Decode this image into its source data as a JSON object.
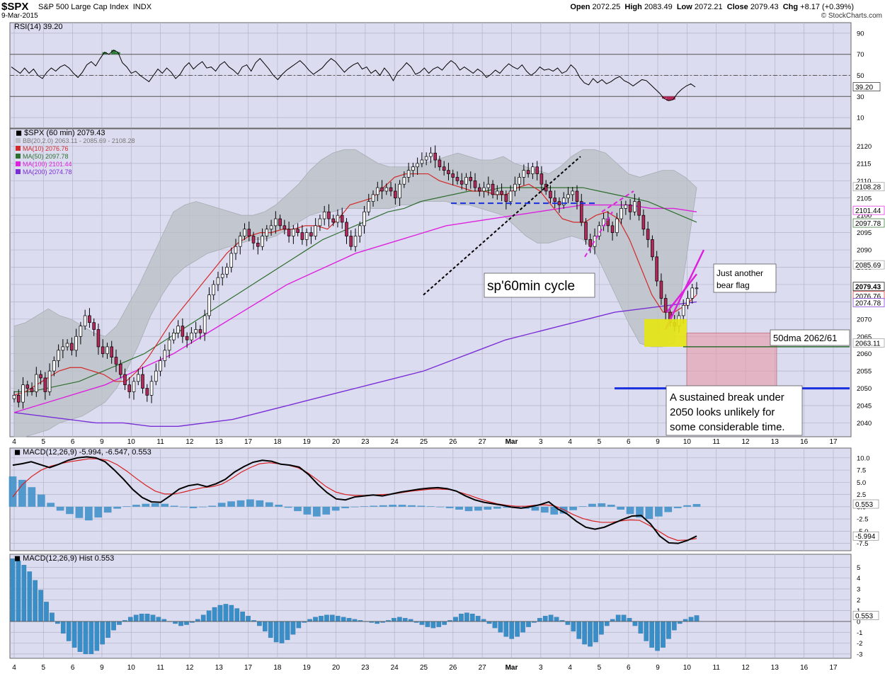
{
  "header": {
    "symbol": "$SPX",
    "company": "S&P 500 Large Cap Index",
    "exchange": "INDX",
    "date": "9-Mar-2015",
    "open_label": "Open",
    "open": "2072.25",
    "high_label": "High",
    "high": "2083.49",
    "low_label": "Low",
    "low": "2072.21",
    "close_label": "Close",
    "close": "2079.43",
    "chg_label": "Chg",
    "chg": "+8.17 (+0.39%)",
    "watermark": "© StockCharts.com"
  },
  "colors": {
    "background": "#ffffff",
    "panel": "#dcdcf0",
    "grid": "#b4b4c8",
    "up_candle": "#ffffff",
    "down_candle": "#b4285a",
    "bollinger": "#b9bfc4",
    "ma10": "#d22a2a",
    "ma50": "#2e6e2e",
    "ma100": "#dd22dd",
    "ma200": "#7a2ed6",
    "histogram": "#3a8ec8",
    "signal": "#d82020"
  },
  "chart_data": [
    {
      "type": "line",
      "panel": "rsi",
      "title": "RSI(14) 39.20",
      "ylim": [
        0,
        100
      ],
      "yticks": [
        10,
        30,
        50,
        70,
        90
      ],
      "reference_lines": [
        30,
        50,
        70
      ],
      "last_label": "39.20",
      "series": [
        {
          "name": "RSI(14)",
          "values": [
            58,
            55,
            52,
            57,
            52,
            56,
            50,
            47,
            53,
            57,
            54,
            58,
            60,
            57,
            52,
            48,
            53,
            60,
            63,
            59,
            66,
            72,
            70,
            74,
            72,
            62,
            58,
            52,
            54,
            50,
            47,
            44,
            50,
            56,
            52,
            57,
            53,
            47,
            51,
            58,
            62,
            56,
            60,
            63,
            57,
            58,
            54,
            60,
            63,
            58,
            55,
            51,
            58,
            60,
            54,
            62,
            66,
            61,
            56,
            50,
            46,
            51,
            55,
            58,
            61,
            64,
            60,
            55,
            51,
            54,
            57,
            62,
            66,
            63,
            58,
            53,
            57,
            60,
            62,
            56,
            58,
            52,
            55,
            50,
            57,
            52,
            45,
            53,
            57,
            62,
            58,
            51,
            53,
            57,
            52,
            56,
            58,
            55,
            60,
            64,
            61,
            55,
            58,
            55,
            52,
            56,
            53,
            48,
            51,
            55,
            52,
            57,
            61,
            58,
            56,
            60,
            54,
            50,
            53,
            58,
            55,
            56,
            54,
            57,
            52,
            54,
            60,
            56,
            48,
            43,
            41,
            47,
            43,
            46,
            42,
            44,
            47,
            49,
            45,
            43,
            40,
            43,
            46,
            45,
            41,
            37,
            33,
            28,
            26,
            27,
            33,
            37,
            40,
            42,
            39
          ]
        }
      ]
    },
    {
      "type": "candlestick",
      "panel": "price",
      "title": "$SPX (60 min) 2079.43",
      "legend": [
        "BB(20,2.0) 2063.11 - 2085.69 - 2108.28",
        "MA(10) 2076.76",
        "MA(50) 2097.78",
        "MA(100) 2101.44",
        "MA(200) 2074.78"
      ],
      "ylim": [
        2036,
        2125
      ],
      "yticks": [
        2040,
        2045,
        2050,
        2055,
        2060,
        2065,
        2070,
        2075,
        2080,
        2085,
        2090,
        2095,
        2100,
        2105,
        2110,
        2115,
        2120
      ],
      "right_labels": [
        "2108.28",
        "2101.44",
        "2097.78",
        "2085.69",
        "2079.43",
        "2076.76",
        "2074.78",
        "2063.11"
      ],
      "x_labels": [
        "4",
        "5",
        "6",
        "9",
        "10",
        "11",
        "12",
        "13",
        "17",
        "18",
        "19",
        "20",
        "23",
        "24",
        "25",
        "26",
        "27",
        "Mar",
        "3",
        "4",
        "5",
        "6",
        "9",
        "10",
        "11",
        "12",
        "13",
        "16",
        "17"
      ],
      "close_series": [
        2048,
        2046,
        2051,
        2050,
        2049,
        2054,
        2053,
        2049,
        2055,
        2058,
        2061,
        2062,
        2063,
        2061,
        2065,
        2068,
        2071,
        2069,
        2067,
        2062,
        2060,
        2062,
        2059,
        2057,
        2054,
        2051,
        2049,
        2052,
        2054,
        2050,
        2048,
        2052,
        2055,
        2058,
        2061,
        2064,
        2066,
        2068,
        2065,
        2064,
        2066,
        2067,
        2066,
        2071,
        2077,
        2080,
        2082,
        2083,
        2085,
        2089,
        2091,
        2094,
        2096,
        2094,
        2092,
        2091,
        2094,
        2096,
        2097,
        2099,
        2097,
        2096,
        2094,
        2096,
        2095,
        2093,
        2095,
        2094,
        2097,
        2099,
        2101,
        2099,
        2098,
        2100,
        2098,
        2094,
        2091,
        2094,
        2097,
        2101,
        2104,
        2106,
        2108,
        2107,
        2108,
        2107,
        2105,
        2109,
        2111,
        2113,
        2114,
        2115,
        2116,
        2117,
        2118,
        2116,
        2114,
        2113,
        2112,
        2111,
        2110,
        2109,
        2111,
        2110,
        2108,
        2107,
        2108,
        2109,
        2106,
        2107,
        2106,
        2104,
        2107,
        2109,
        2111,
        2113,
        2112,
        2114,
        2112,
        2109,
        2107,
        2105,
        2104,
        2103,
        2105,
        2106,
        2107,
        2104,
        2098,
        2093,
        2091,
        2094,
        2097,
        2099,
        2097,
        2095,
        2099,
        2102,
        2103,
        2101,
        2104,
        2100,
        2096,
        2093,
        2088,
        2081,
        2076,
        2072,
        2069,
        2068,
        2071,
        2074,
        2076,
        2079,
        2079
      ],
      "series": [
        {
          "name": "MA(10)",
          "values": [
            2048,
            2049,
            2051,
            2053,
            2055,
            2056,
            2056,
            2055,
            2054,
            2052,
            2052,
            2055,
            2059,
            2064,
            2069,
            2073,
            2077,
            2081,
            2085,
            2089,
            2092,
            2094,
            2095,
            2095,
            2096,
            2096,
            2097,
            2097,
            2096,
            2099,
            2103,
            2104,
            2105,
            2108,
            2111,
            2112,
            2112,
            2112,
            2110,
            2109,
            2108,
            2107,
            2107,
            2106,
            2106,
            2108,
            2109,
            2107,
            2103,
            2099,
            2098,
            2098,
            2100,
            2101,
            2099,
            2093,
            2085,
            2077,
            2072,
            2072,
            2074,
            2077
          ]
        },
        {
          "name": "MA(50)",
          "values": [
            2049,
            2049,
            2050,
            2051,
            2052,
            2054,
            2056,
            2058,
            2060,
            2063,
            2066,
            2069,
            2072,
            2075,
            2078,
            2081,
            2084,
            2087,
            2090,
            2093,
            2095,
            2097,
            2099,
            2101,
            2102,
            2104,
            2105,
            2106,
            2107,
            2107,
            2108,
            2108,
            2108,
            2108,
            2108,
            2108,
            2107,
            2106,
            2105,
            2104,
            2102,
            2100,
            2098
          ]
        },
        {
          "name": "MA(100)",
          "values": [
            2043,
            2045,
            2047,
            2049,
            2051,
            2054,
            2057,
            2060,
            2064,
            2068,
            2072,
            2076,
            2080,
            2083,
            2086,
            2089,
            2091,
            2093,
            2095,
            2097,
            2098,
            2099,
            2100,
            2101,
            2102,
            2103,
            2103,
            2103,
            2102,
            2102,
            2101
          ]
        },
        {
          "name": "MA(200)",
          "values": [
            2043,
            2042,
            2041,
            2040,
            2040,
            2039,
            2039,
            2040,
            2041,
            2043,
            2045,
            2047,
            2049,
            2051,
            2053,
            2055,
            2058,
            2061,
            2064,
            2066,
            2068,
            2070,
            2072,
            2073,
            2074,
            2075
          ]
        },
        {
          "name": "BB upper",
          "values": [
            2068,
            2069,
            2071,
            2073,
            2071,
            2070,
            2068,
            2066,
            2065,
            2068,
            2074,
            2080,
            2087,
            2094,
            2101,
            2103,
            2104,
            2103,
            2102,
            2101,
            2100,
            2100,
            2101,
            2103,
            2106,
            2109,
            2113,
            2116,
            2118,
            2119,
            2119,
            2117,
            2115,
            2114,
            2114,
            2114,
            2115,
            2116,
            2117,
            2118,
            2117,
            2116,
            2116,
            2117,
            2115,
            2114,
            2113,
            2112,
            2114,
            2117,
            2119,
            2119,
            2118,
            2115,
            2112,
            2111,
            2112,
            2113,
            2113,
            2111,
            2108
          ]
        },
        {
          "name": "BB lower",
          "values": [
            2036,
            2036,
            2037,
            2038,
            2040,
            2041,
            2042,
            2044,
            2046,
            2050,
            2056,
            2063,
            2071,
            2077,
            2082,
            2085,
            2087,
            2089,
            2090,
            2091,
            2092,
            2093,
            2093,
            2094,
            2096,
            2098,
            2100,
            2101,
            2101,
            2102,
            2102,
            2102,
            2102,
            2102,
            2103,
            2103,
            2104,
            2104,
            2104,
            2103,
            2103,
            2102,
            2101,
            2100,
            2097,
            2094,
            2092,
            2092,
            2093,
            2094,
            2093,
            2090,
            2083,
            2076,
            2069,
            2063,
            2062,
            2062,
            2063
          ]
        }
      ],
      "annotations": {
        "cycle_label": "sp'60min cycle",
        "flag_label_line1": "Just another",
        "flag_label_line2": "bear flag",
        "ma50_label": "50dma 2062/61",
        "support_level": 2050,
        "note_line1": "A sustained break under",
        "note_line2": "2050 looks unlikely for",
        "note_line3": "some considerable time."
      }
    },
    {
      "type": "line",
      "panel": "macd",
      "title": "MACD(12,26,9) -5.994, -6.547, 0.553",
      "ylim": [
        -9,
        12
      ],
      "yticks": [
        -7.5,
        -5.0,
        -2.5,
        0.0,
        2.5,
        5.0,
        7.5,
        10.0
      ],
      "right_labels": [
        "0.553",
        "-5.994"
      ],
      "series": [
        {
          "name": "MACD",
          "values": [
            8.5,
            8.8,
            9.2,
            8.6,
            8.0,
            8.7,
            9.5,
            10.0,
            10.2,
            10.0,
            9.2,
            7.5,
            5.6,
            3.5,
            1.9,
            1.0,
            0.9,
            2.2,
            3.6,
            4.3,
            4.6,
            4.1,
            4.7,
            5.6,
            7.1,
            8.2,
            9.1,
            9.5,
            9.3,
            8.7,
            8.5,
            8.1,
            6.6,
            4.6,
            2.9,
            1.6,
            1.4,
            2.0,
            2.2,
            2.4,
            2.2,
            2.6,
            3.0,
            3.3,
            3.6,
            3.8,
            3.9,
            3.7,
            3.2,
            2.2,
            1.4,
            0.9,
            0.6,
            0.3,
            -0.1,
            -0.3,
            0.0,
            0.4,
            1.0,
            -0.5,
            -1.5,
            -3.0,
            -4.2,
            -4.6,
            -4.2,
            -3.4,
            -2.6,
            -1.9,
            -1.8,
            -3.5,
            -6.0,
            -7.4,
            -7.5,
            -6.9,
            -6.0
          ]
        },
        {
          "name": "Signal",
          "values": [
            2.0,
            4.5,
            6.2,
            7.5,
            8.3,
            8.8,
            9.2,
            9.5,
            9.8,
            9.8,
            9.5,
            8.6,
            7.3,
            5.8,
            4.4,
            3.2,
            2.6,
            2.6,
            3.0,
            3.5,
            3.9,
            4.1,
            4.6,
            5.7,
            7.0,
            8.0,
            8.8,
            9.0,
            8.8,
            8.5,
            8.0,
            7.0,
            5.6,
            4.1,
            3.0,
            2.5,
            2.3,
            2.3,
            2.4,
            2.5,
            2.6,
            2.9,
            3.2,
            3.4,
            3.6,
            3.6,
            3.5,
            3.0,
            2.4,
            1.7,
            1.1,
            0.6,
            0.3,
            0.1,
            0.1,
            0.3,
            0.4,
            0.2,
            -0.6,
            -1.6,
            -2.4,
            -2.9,
            -3.2,
            -3.2,
            -2.9,
            -2.7,
            -2.8,
            -3.8,
            -5.0,
            -6.2,
            -6.9,
            -6.8,
            -6.5
          ]
        },
        {
          "name": "Histogram",
          "values": [
            6.2,
            5.5,
            4.0,
            2.5,
            0.8,
            -0.8,
            -1.5,
            -2.3,
            -2.8,
            -2.2,
            -1.2,
            -0.4,
            0.1,
            0.4,
            0.6,
            0.7,
            0.6,
            0.2,
            -0.1,
            -0.3,
            -0.1,
            0.2,
            0.8,
            1.1,
            1.3,
            1.5,
            1.3,
            0.9,
            0.4,
            -0.2,
            -0.9,
            -1.6,
            -2.0,
            -1.6,
            -0.8,
            -0.3,
            -0.1,
            0.1,
            0.2,
            0.3,
            0.4,
            0.4,
            0.3,
            0.2,
            0.1,
            -0.1,
            -0.3,
            -0.6,
            -0.9,
            -0.8,
            -0.6,
            -0.4,
            -0.2,
            -0.2,
            -0.4,
            -0.8,
            -1.2,
            -1.6,
            -1.4,
            -0.7,
            0.1,
            0.6,
            0.7,
            0.4,
            -0.6,
            -1.5,
            -2.2,
            -2.5,
            -2.0,
            -1.1,
            -0.3,
            0.3,
            0.55
          ]
        }
      ]
    },
    {
      "type": "bar",
      "panel": "hist",
      "title": "MACD(12,26,9) Hist 0.553",
      "ylim": [
        -3.4,
        6.2
      ],
      "yticks": [
        -3,
        -2,
        -1,
        0,
        1,
        2,
        3,
        4,
        5
      ],
      "right_labels": [
        "0.553"
      ],
      "values": [
        5.8,
        5.6,
        5.2,
        4.6,
        3.8,
        2.9,
        1.8,
        0.8,
        -0.2,
        -1.1,
        -1.8,
        -2.4,
        -2.8,
        -3.0,
        -3.0,
        -2.7,
        -2.1,
        -1.5,
        -0.8,
        -0.3,
        0.1,
        0.4,
        0.6,
        0.7,
        0.7,
        0.6,
        0.4,
        0.2,
        0.0,
        -0.2,
        -0.4,
        -0.3,
        -0.1,
        0.2,
        0.6,
        1.0,
        1.3,
        1.5,
        1.6,
        1.5,
        1.2,
        0.9,
        0.5,
        0.1,
        -0.4,
        -0.9,
        -1.5,
        -1.9,
        -2.0,
        -1.7,
        -1.2,
        -0.6,
        -0.1,
        0.2,
        0.4,
        0.5,
        0.6,
        0.6,
        0.5,
        0.4,
        0.3,
        0.2,
        0.1,
        0.0,
        -0.1,
        -0.2,
        -0.1,
        0.1,
        0.3,
        0.4,
        0.3,
        0.2,
        -0.1,
        -0.3,
        -0.5,
        -0.6,
        -0.5,
        -0.3,
        0.1,
        0.4,
        0.7,
        0.8,
        0.7,
        0.5,
        0.2,
        -0.2,
        -0.6,
        -1.0,
        -1.4,
        -1.6,
        -1.4,
        -1.0,
        -0.5,
        -0.1,
        0.3,
        0.5,
        0.6,
        0.4,
        0.1,
        -0.3,
        -0.9,
        -1.6,
        -2.1,
        -2.3,
        -1.9,
        -1.2,
        -0.4,
        0.2,
        0.6,
        0.6,
        0.3,
        -0.4,
        -1.1,
        -1.8,
        -2.4,
        -2.7,
        -2.4,
        -1.6,
        -0.8,
        -0.2,
        0.2,
        0.4,
        0.553
      ],
      "x_labels": [
        "4",
        "5",
        "6",
        "9",
        "10",
        "11",
        "12",
        "13",
        "17",
        "18",
        "19",
        "20",
        "23",
        "24",
        "25",
        "26",
        "27",
        "Mar",
        "3",
        "4",
        "5",
        "6",
        "9",
        "10",
        "11",
        "12",
        "13",
        "16",
        "17"
      ]
    }
  ]
}
